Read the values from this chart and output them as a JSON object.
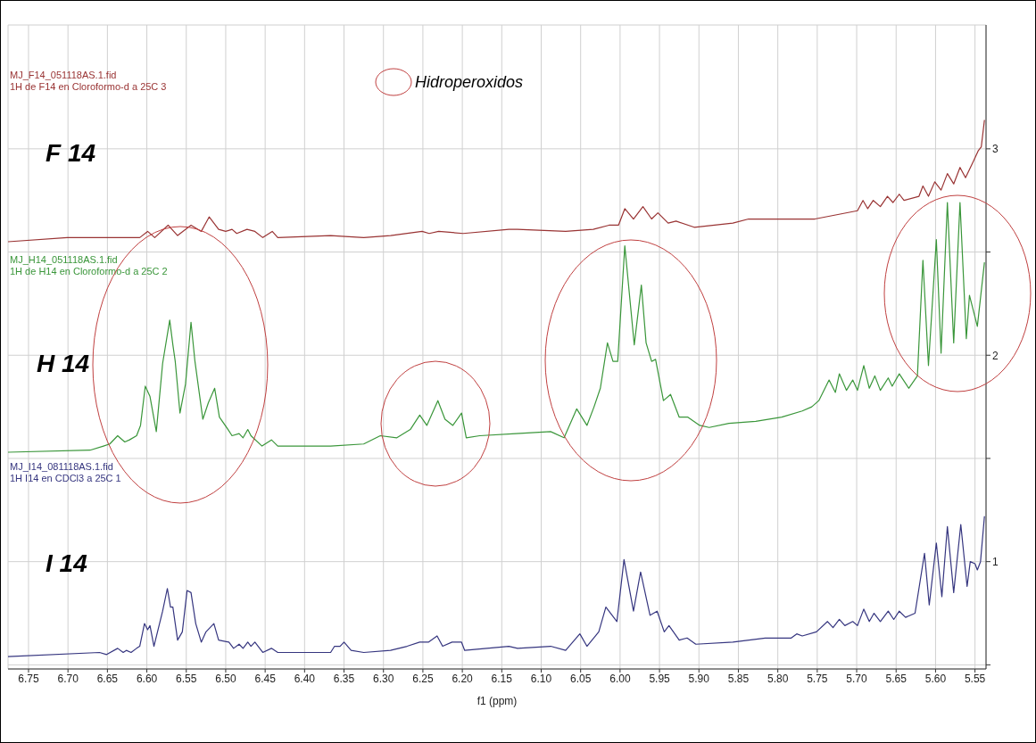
{
  "chart_data": {
    "type": "line",
    "xlabel": "f1 (ppm)",
    "xlim": [
      6.776,
      5.536
    ],
    "xticks": [
      {
        "value": 6.75,
        "label": "6.75"
      },
      {
        "value": 6.7,
        "label": "6.70"
      },
      {
        "value": 6.65,
        "label": "6.65"
      },
      {
        "value": 6.6,
        "label": "6.60"
      },
      {
        "value": 6.55,
        "label": "6.55"
      },
      {
        "value": 6.5,
        "label": "6.50"
      },
      {
        "value": 6.45,
        "label": "6.45"
      },
      {
        "value": 6.4,
        "label": "6.40"
      },
      {
        "value": 6.35,
        "label": "6.35"
      },
      {
        "value": 6.3,
        "label": "6.30"
      },
      {
        "value": 6.25,
        "label": "6.25"
      },
      {
        "value": 6.2,
        "label": "6.20"
      },
      {
        "value": 6.15,
        "label": "6.15"
      },
      {
        "value": 6.1,
        "label": "6.10"
      },
      {
        "value": 6.05,
        "label": "6.05"
      },
      {
        "value": 6.0,
        "label": "6.00"
      },
      {
        "value": 5.95,
        "label": "5.95"
      },
      {
        "value": 5.9,
        "label": "5.90"
      },
      {
        "value": 5.85,
        "label": "5.85"
      },
      {
        "value": 5.8,
        "label": "5.80"
      },
      {
        "value": 5.75,
        "label": "5.75"
      },
      {
        "value": 5.7,
        "label": "5.70"
      },
      {
        "value": 5.65,
        "label": "5.65"
      },
      {
        "value": 5.6,
        "label": "5.60"
      },
      {
        "value": 5.55,
        "label": "5.55"
      }
    ],
    "ylim": [
      0.48,
      3.6
    ],
    "yticks": [
      {
        "value": 0.5,
        "label": null
      },
      1,
      {
        "value": 1.5,
        "label": null
      },
      2,
      {
        "value": 2.5,
        "label": null
      },
      3
    ],
    "grid": true,
    "marker": "none",
    "line_style": "solid",
    "annotations": [
      "MJ_F14_051118AS.1.fid",
      "1H de F14 en Cloroformo-d a 25C 3",
      "MJ_H14_051118AS.1.fid",
      "1H de H14 en Cloroformo-d a 25C 2",
      "MJ_I14_081118AS.1.fid",
      "1H I14 en CDCl3 a 25C 1",
      "Hidroperoxidos"
    ],
    "series": [
      {
        "name": "F 14",
        "color": "#993333",
        "x": [
          6.776,
          6.701,
          6.609,
          6.599,
          6.59,
          6.573,
          6.561,
          6.544,
          6.531,
          6.521,
          6.509,
          6.5,
          6.492,
          6.486,
          6.473,
          6.463,
          6.453,
          6.441,
          6.434,
          6.367,
          6.325,
          6.291,
          6.251,
          6.242,
          6.23,
          6.199,
          6.141,
          6.13,
          6.069,
          6.034,
          6.014,
          6.002,
          5.994,
          5.983,
          5.971,
          5.96,
          5.952,
          5.939,
          5.929,
          5.906,
          5.857,
          5.837,
          5.799,
          5.753,
          5.699,
          5.692,
          5.686,
          5.679,
          5.67,
          5.661,
          5.654,
          5.646,
          5.64,
          5.621,
          5.616,
          5.609,
          5.601,
          5.593,
          5.585,
          5.577,
          5.569,
          5.562,
          5.552,
          5.546,
          5.542,
          5.538
        ],
        "values": [
          2.55,
          2.57,
          2.57,
          2.6,
          2.57,
          2.63,
          2.58,
          2.63,
          2.6,
          2.67,
          2.61,
          2.6,
          2.61,
          2.59,
          2.61,
          2.6,
          2.57,
          2.6,
          2.57,
          2.58,
          2.57,
          2.58,
          2.6,
          2.59,
          2.6,
          2.59,
          2.61,
          2.61,
          2.6,
          2.61,
          2.63,
          2.63,
          2.71,
          2.66,
          2.72,
          2.66,
          2.69,
          2.64,
          2.65,
          2.62,
          2.64,
          2.66,
          2.66,
          2.66,
          2.7,
          2.75,
          2.71,
          2.75,
          2.72,
          2.77,
          2.74,
          2.78,
          2.75,
          2.77,
          2.82,
          2.77,
          2.84,
          2.8,
          2.88,
          2.83,
          2.91,
          2.86,
          2.94,
          2.99,
          3.01,
          3.14
        ]
      },
      {
        "name": "H 14",
        "color": "#3a963a",
        "x": [
          6.776,
          6.672,
          6.655,
          6.647,
          6.637,
          6.628,
          6.622,
          6.613,
          6.608,
          6.602,
          6.596,
          6.588,
          6.58,
          6.571,
          6.567,
          6.564,
          6.558,
          6.551,
          6.544,
          6.539,
          6.529,
          6.522,
          6.514,
          6.508,
          6.497,
          6.492,
          6.483,
          6.478,
          6.472,
          6.468,
          6.454,
          6.442,
          6.434,
          6.367,
          6.325,
          6.304,
          6.283,
          6.266,
          6.254,
          6.245,
          6.231,
          6.222,
          6.212,
          6.201,
          6.195,
          6.178,
          6.132,
          6.088,
          6.071,
          6.055,
          6.042,
          6.033,
          6.025,
          6.016,
          6.009,
          6.003,
          5.994,
          5.982,
          5.973,
          5.967,
          5.96,
          5.955,
          5.945,
          5.936,
          5.925,
          5.914,
          5.899,
          5.887,
          5.862,
          5.828,
          5.795,
          5.769,
          5.757,
          5.748,
          5.735,
          5.727,
          5.722,
          5.713,
          5.705,
          5.699,
          5.691,
          5.684,
          5.677,
          5.67,
          5.66,
          5.655,
          5.646,
          5.634,
          5.623,
          5.616,
          5.609,
          5.599,
          5.593,
          5.585,
          5.577,
          5.569,
          5.561,
          5.557,
          5.547,
          5.538
        ],
        "values": [
          1.53,
          1.54,
          1.56,
          1.57,
          1.61,
          1.58,
          1.59,
          1.61,
          1.66,
          1.85,
          1.8,
          1.63,
          1.96,
          2.17,
          2.05,
          1.97,
          1.72,
          1.86,
          2.16,
          1.97,
          1.69,
          1.77,
          1.84,
          1.7,
          1.64,
          1.61,
          1.62,
          1.6,
          1.64,
          1.61,
          1.56,
          1.59,
          1.56,
          1.56,
          1.57,
          1.61,
          1.6,
          1.64,
          1.71,
          1.66,
          1.78,
          1.69,
          1.66,
          1.72,
          1.6,
          1.61,
          1.62,
          1.63,
          1.6,
          1.74,
          1.66,
          1.75,
          1.84,
          2.06,
          1.97,
          1.97,
          2.53,
          2.05,
          2.34,
          2.06,
          1.97,
          1.98,
          1.78,
          1.81,
          1.7,
          1.7,
          1.66,
          1.65,
          1.67,
          1.68,
          1.7,
          1.73,
          1.75,
          1.78,
          1.88,
          1.82,
          1.91,
          1.83,
          1.88,
          1.83,
          1.95,
          1.84,
          1.9,
          1.83,
          1.89,
          1.85,
          1.91,
          1.84,
          1.9,
          2.46,
          1.95,
          2.56,
          2.01,
          2.74,
          2.06,
          2.74,
          2.08,
          2.29,
          2.14,
          2.45
        ]
      },
      {
        "name": "I 14",
        "color": "#35357f",
        "x": [
          6.776,
          6.66,
          6.651,
          6.637,
          6.63,
          6.626,
          6.62,
          6.613,
          6.609,
          6.603,
          6.599,
          6.596,
          6.591,
          6.58,
          6.574,
          6.57,
          6.567,
          6.561,
          6.555,
          6.549,
          6.544,
          6.538,
          6.531,
          6.525,
          6.515,
          6.509,
          6.496,
          6.49,
          6.483,
          6.478,
          6.472,
          6.468,
          6.463,
          6.453,
          6.442,
          6.434,
          6.367,
          6.362,
          6.355,
          6.35,
          6.341,
          6.325,
          6.291,
          6.27,
          6.254,
          6.243,
          6.232,
          6.225,
          6.213,
          6.201,
          6.197,
          6.141,
          6.13,
          6.088,
          6.069,
          6.051,
          6.042,
          6.027,
          6.018,
          6.004,
          5.995,
          5.983,
          5.974,
          5.962,
          5.953,
          5.944,
          5.938,
          5.925,
          5.915,
          5.904,
          5.857,
          5.816,
          5.783,
          5.776,
          5.769,
          5.751,
          5.737,
          5.73,
          5.722,
          5.715,
          5.705,
          5.699,
          5.691,
          5.684,
          5.678,
          5.67,
          5.66,
          5.653,
          5.646,
          5.638,
          5.626,
          5.614,
          5.608,
          5.599,
          5.592,
          5.585,
          5.577,
          5.568,
          5.56,
          5.556,
          5.55,
          5.547,
          5.543,
          5.538
        ],
        "values": [
          0.54,
          0.56,
          0.55,
          0.58,
          0.56,
          0.57,
          0.56,
          0.58,
          0.59,
          0.7,
          0.67,
          0.69,
          0.59,
          0.76,
          0.87,
          0.78,
          0.78,
          0.62,
          0.66,
          0.86,
          0.85,
          0.7,
          0.61,
          0.66,
          0.7,
          0.62,
          0.61,
          0.58,
          0.6,
          0.58,
          0.61,
          0.59,
          0.61,
          0.56,
          0.58,
          0.56,
          0.56,
          0.59,
          0.59,
          0.61,
          0.57,
          0.56,
          0.57,
          0.59,
          0.61,
          0.61,
          0.64,
          0.59,
          0.61,
          0.61,
          0.57,
          0.59,
          0.58,
          0.59,
          0.57,
          0.65,
          0.59,
          0.66,
          0.78,
          0.71,
          1.01,
          0.76,
          0.95,
          0.74,
          0.76,
          0.66,
          0.69,
          0.62,
          0.63,
          0.6,
          0.61,
          0.63,
          0.63,
          0.65,
          0.64,
          0.66,
          0.71,
          0.68,
          0.72,
          0.69,
          0.71,
          0.69,
          0.77,
          0.71,
          0.75,
          0.71,
          0.76,
          0.72,
          0.76,
          0.73,
          0.75,
          1.04,
          0.79,
          1.09,
          0.83,
          1.17,
          0.85,
          1.18,
          0.88,
          1.0,
          0.99,
          0.96,
          1.0,
          1.22
        ]
      }
    ]
  }
}
